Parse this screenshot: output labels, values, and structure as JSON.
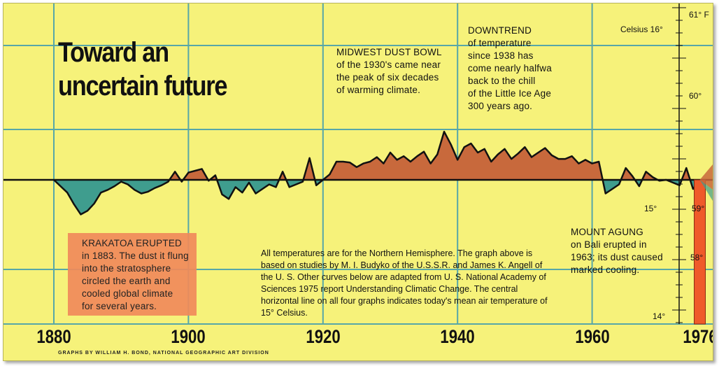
{
  "title_lines": [
    "Toward an",
    "uncertain future"
  ],
  "annotations": {
    "dust_bowl": {
      "head": "MIDWEST DUST BOWL",
      "lines": [
        "of the 1930's came near",
        "the peak of six decades",
        "of warming climate."
      ]
    },
    "downtrend": {
      "head": "DOWNTREND",
      "lines": [
        "of temperature",
        "since 1938 has",
        "come nearly halfwa",
        "back to the chill",
        "of the Little Ice Age",
        "300 years ago."
      ]
    },
    "krakatoa": {
      "head": "KRAKATOA ERUPTED",
      "lines": [
        "in 1883. The dust it flung",
        "into the stratosphere",
        "circled the earth and",
        "cooled global climate",
        "for several years."
      ]
    },
    "agung": {
      "head": "MOUNT AGUNG",
      "lines": [
        "on Bali erupted in",
        "1963; its dust caused",
        "marked cooling."
      ]
    }
  },
  "note": "All temperatures are for the Northern Hemisphere. The graph above is based on studies by M. I. Budyko of the U.S.S.R. and James K. Angell of the U. S. Other curves below are adapted from U. S. National Academy of Sciences 1975 report Understanding Climatic Change. The central horizontal line on all four graphs indicates today's mean air temperature of 15° Celsius.",
  "credit": "GRAPHS BY WILLIAM H. BOND, NATIONAL GEOGRAPHIC ART DIVISION",
  "colors": {
    "background": "#f6f27a",
    "warm": "#c8693c",
    "cool": "#3f9d8e",
    "grid": "#57a7a8",
    "thermometer": "#ef5a2a"
  },
  "chart_data": {
    "type": "area",
    "xlabel": "",
    "ylabel": "",
    "x_ticks": [
      1880,
      1900,
      1920,
      1940,
      1960,
      1976
    ],
    "y_ticks_celsius": [
      "Celsius 16°",
      "15°",
      "14°"
    ],
    "y_ticks_fahrenheit": [
      "61° F",
      "60°",
      "59°",
      "58°"
    ],
    "baseline_celsius": 15,
    "xlim": [
      1874,
      1982
    ],
    "ylim": [
      14.0,
      16.3
    ],
    "x": [
      1880,
      1881,
      1882,
      1883,
      1884,
      1885,
      1886,
      1887,
      1888,
      1889,
      1890,
      1891,
      1892,
      1893,
      1894,
      1895,
      1896,
      1897,
      1898,
      1899,
      1900,
      1901,
      1902,
      1903,
      1904,
      1905,
      1906,
      1907,
      1908,
      1909,
      1910,
      1911,
      1912,
      1913,
      1914,
      1915,
      1916,
      1917,
      1918,
      1919,
      1920,
      1921,
      1922,
      1923,
      1924,
      1925,
      1926,
      1927,
      1928,
      1929,
      1930,
      1931,
      1932,
      1933,
      1934,
      1935,
      1936,
      1937,
      1938,
      1939,
      1940,
      1941,
      1942,
      1943,
      1944,
      1945,
      1946,
      1947,
      1948,
      1949,
      1950,
      1951,
      1952,
      1953,
      1954,
      1955,
      1956,
      1957,
      1958,
      1959,
      1960,
      1961,
      1962,
      1963,
      1964,
      1965,
      1966,
      1967,
      1968,
      1969,
      1970,
      1971,
      1972,
      1973,
      1974,
      1975,
      1976
    ],
    "values": [
      15.0,
      14.93,
      14.86,
      14.73,
      14.62,
      14.66,
      14.74,
      14.86,
      14.89,
      14.93,
      14.98,
      14.95,
      14.89,
      14.85,
      14.87,
      14.91,
      14.94,
      14.98,
      15.09,
      14.98,
      15.08,
      15.1,
      15.12,
      14.99,
      15.05,
      14.84,
      14.79,
      14.92,
      14.86,
      14.97,
      14.85,
      14.9,
      14.95,
      14.92,
      15.09,
      14.92,
      14.95,
      14.98,
      15.24,
      14.94,
      15.0,
      15.06,
      15.2,
      15.2,
      15.19,
      15.14,
      15.18,
      15.2,
      15.25,
      15.18,
      15.3,
      15.22,
      15.26,
      15.2,
      15.26,
      15.31,
      15.18,
      15.28,
      15.53,
      15.39,
      15.22,
      15.36,
      15.4,
      15.3,
      15.34,
      15.2,
      15.28,
      15.34,
      15.23,
      15.29,
      15.36,
      15.25,
      15.3,
      15.35,
      15.27,
      15.23,
      15.23,
      15.26,
      15.18,
      15.22,
      15.18,
      15.2,
      14.85,
      14.9,
      14.95,
      15.13,
      15.04,
      14.93,
      15.09,
      15.03,
      14.99,
      15.0,
      14.97,
      14.94,
      15.13,
      14.9,
      15.0
    ]
  }
}
